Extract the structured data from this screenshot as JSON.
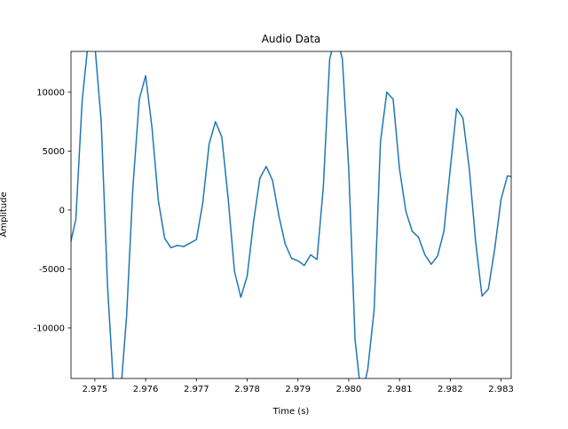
{
  "chart_data": {
    "type": "line",
    "title": "Audio Data",
    "x_label": "Time (s)",
    "y_label": "Amplitude",
    "x": [
      2.9745,
      2.974625,
      2.97475,
      2.974875,
      2.975,
      2.975125,
      2.97525,
      2.975375,
      2.9755,
      2.975625,
      2.97575,
      2.975875,
      2.976,
      2.976125,
      2.97625,
      2.976375,
      2.9765,
      2.976625,
      2.97675,
      2.976875,
      2.977,
      2.977125,
      2.97725,
      2.977375,
      2.9775,
      2.977625,
      2.97775,
      2.977875,
      2.978,
      2.978125,
      2.97825,
      2.978375,
      2.9785,
      2.978625,
      2.97875,
      2.978875,
      2.979,
      2.979125,
      2.97925,
      2.979375,
      2.9795,
      2.979625,
      2.97975,
      2.979875,
      2.98,
      2.980125,
      2.98025,
      2.980375,
      2.9805,
      2.980625,
      2.98075,
      2.980875,
      2.981,
      2.981125,
      2.98125,
      2.981375,
      2.9815,
      2.981625,
      2.98175,
      2.981875,
      2.982,
      2.982125,
      2.98225,
      2.982375,
      2.9825,
      2.982625,
      2.98275,
      2.982875,
      2.983,
      2.983125,
      2.98325
    ],
    "series": [
      {
        "color": "#1f77b4",
        "values": [
          -3200,
          -800,
          9300,
          14500,
          14000,
          7500,
          -6500,
          -15500,
          -16000,
          -9000,
          2000,
          9400,
          11400,
          7000,
          800,
          -2400,
          -3200,
          -3000,
          -3100,
          -2800,
          -2500,
          600,
          5600,
          7500,
          6200,
          1000,
          -5200,
          -7400,
          -5600,
          -1000,
          2700,
          3700,
          2500,
          -500,
          -2900,
          -4100,
          -4300,
          -4700,
          -3800,
          -4200,
          2000,
          12800,
          15000,
          12800,
          3500,
          -11000,
          -16000,
          -13500,
          -8500,
          5800,
          10000,
          9400,
          3500,
          -100,
          -1800,
          -2300,
          -3800,
          -4600,
          -3900,
          -1800,
          3500,
          8600,
          7800,
          3500,
          -2700,
          -7300,
          -6700,
          -3300,
          900,
          2900,
          2800
        ]
      }
    ],
    "xlim": [
      2.97453,
      2.9832
    ],
    "ylim": [
      -14290,
      13460
    ],
    "xticks": [
      2.975,
      2.976,
      2.977,
      2.978,
      2.979,
      {
        "value": 2.98,
        "label": "2.980"
      },
      2.981,
      2.982,
      2.983
    ],
    "yticks": [
      -10000,
      -5000,
      0,
      5000,
      10000
    ]
  }
}
